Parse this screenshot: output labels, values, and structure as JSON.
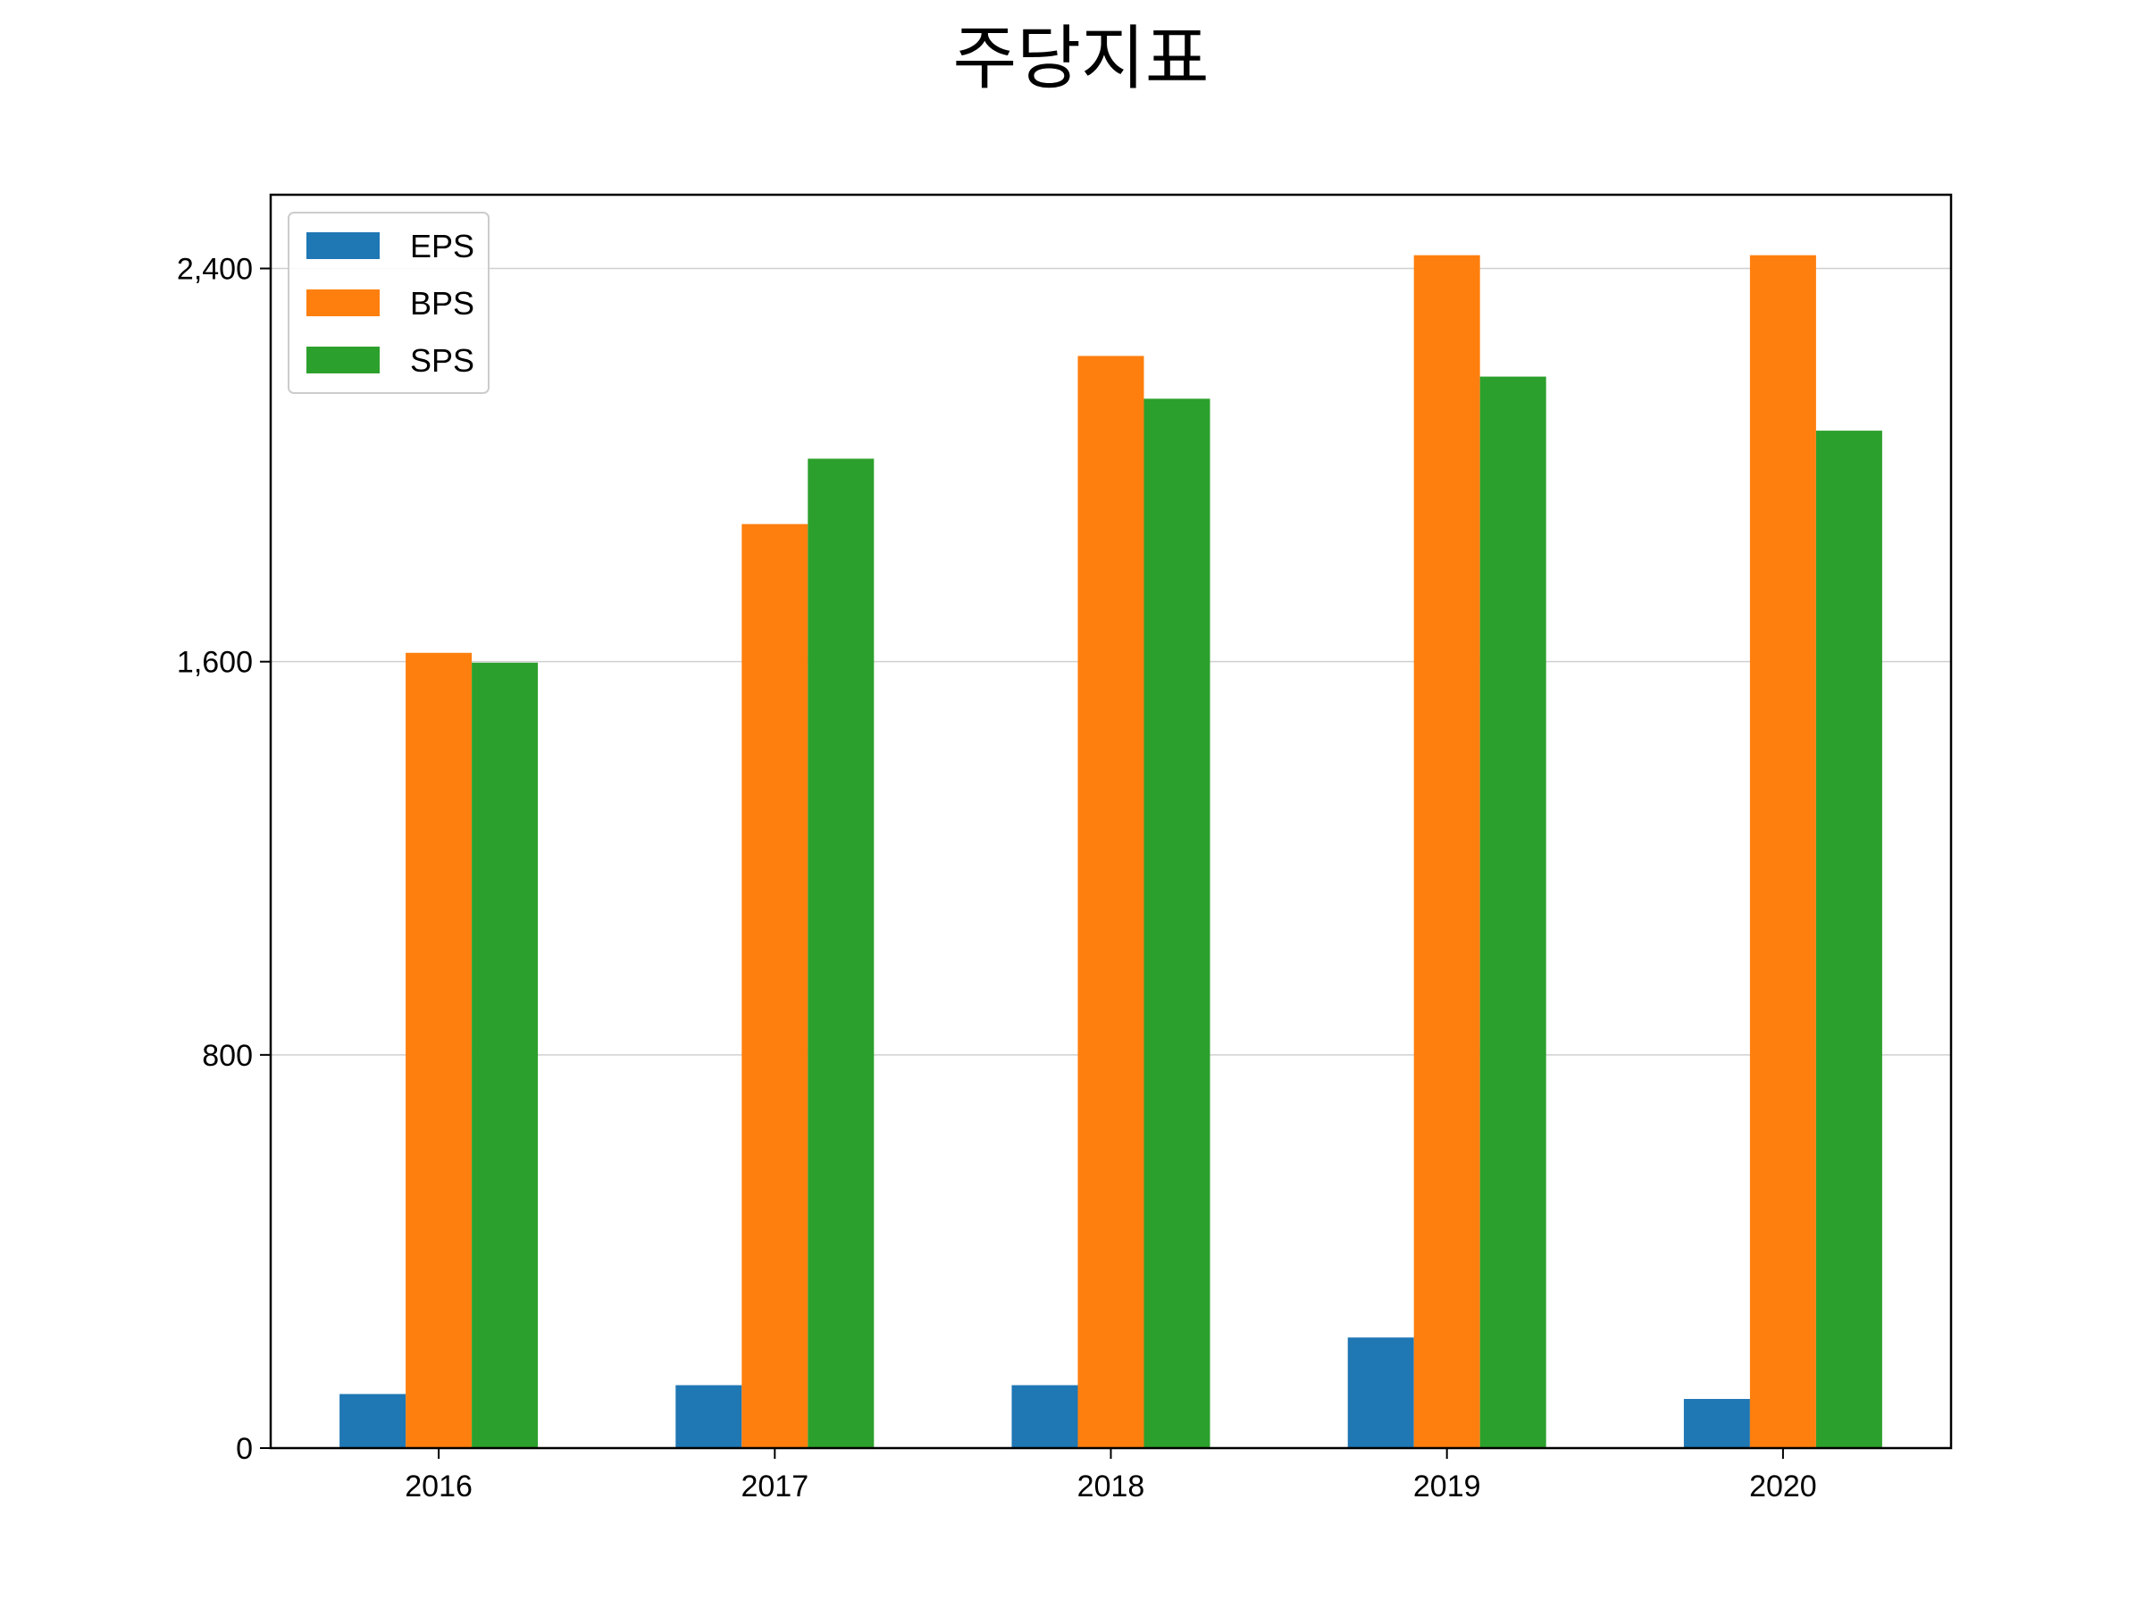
{
  "chart_data": {
    "type": "bar",
    "title": "주당지표",
    "xlabel": "",
    "ylabel": "",
    "categories": [
      "2016",
      "2017",
      "2018",
      "2019",
      "2020"
    ],
    "series": [
      {
        "name": "EPS",
        "color": "#1f77b4",
        "values": [
          110,
          128,
          128,
          225,
          100
        ]
      },
      {
        "name": "BPS",
        "color": "#ff7f0e",
        "values": [
          1618,
          1880,
          2222,
          2427,
          2427
        ]
      },
      {
        "name": "SPS",
        "color": "#2ca02c",
        "values": [
          1598,
          2013,
          2135,
          2180,
          2070
        ]
      }
    ],
    "ylim": [
      0,
      2550
    ],
    "yticks": [
      0,
      800,
      1600,
      2400
    ],
    "ytick_labels": [
      "0",
      "800",
      "1,600",
      "2,400"
    ],
    "grid": "y",
    "legend_position": "top-left"
  }
}
